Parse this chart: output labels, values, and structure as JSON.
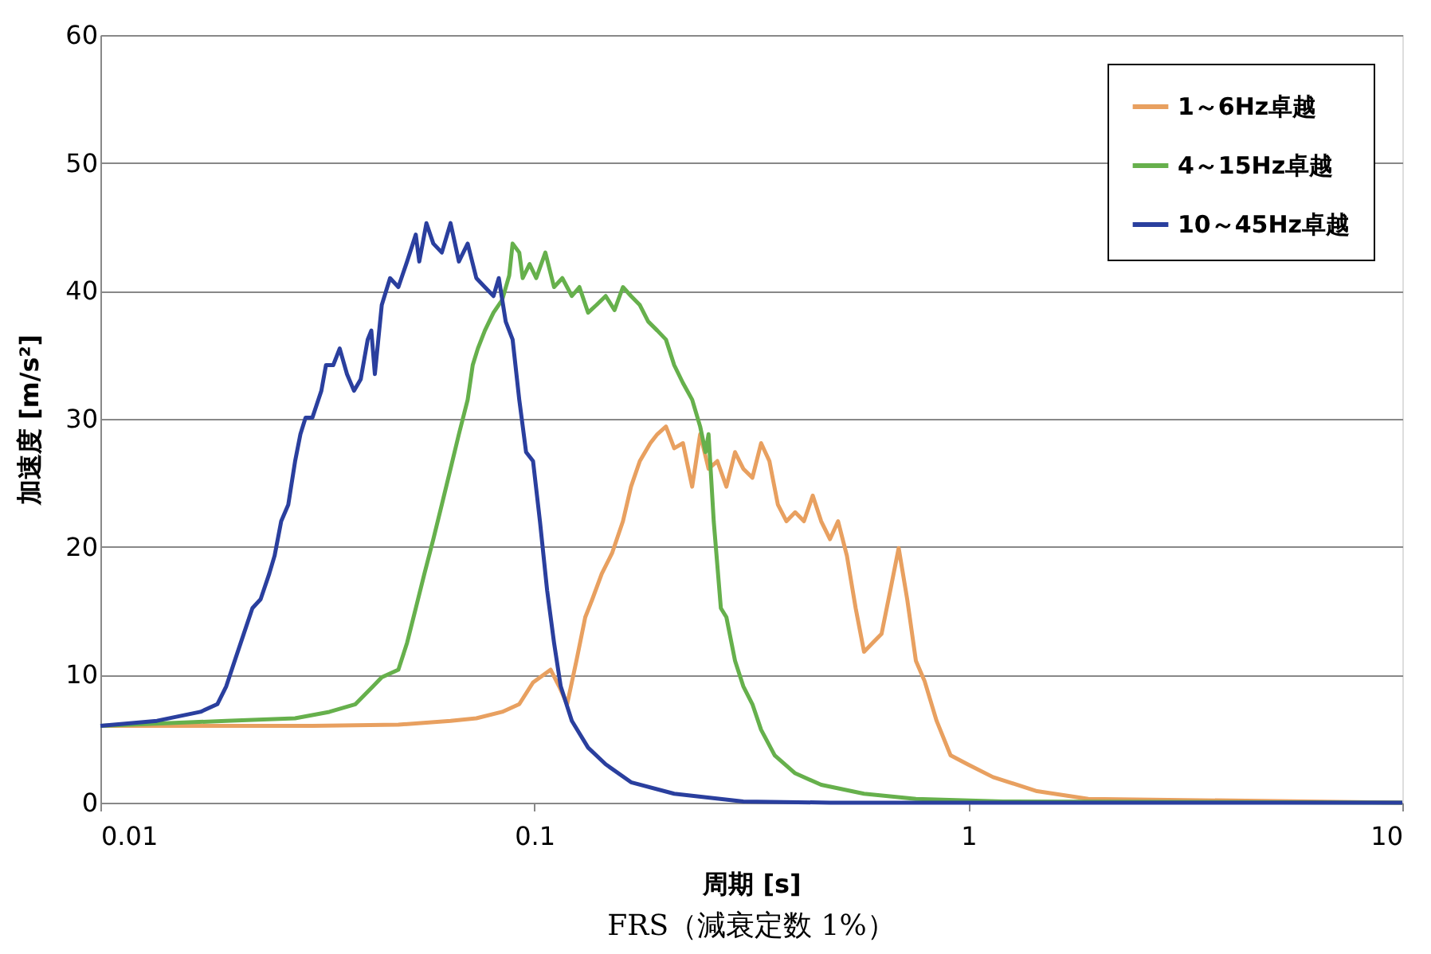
{
  "chart_data": {
    "type": "line",
    "title": "FRS（減衰定数 1%）",
    "xlabel": "周期 [s]",
    "ylabel": "加速度 [m/s²]",
    "log": "x",
    "xlim": [
      0.01,
      10
    ],
    "xticks": [
      0.01,
      0.1,
      1,
      10
    ],
    "ylim": [
      0,
      60
    ],
    "yticks": [
      0,
      10,
      20,
      30,
      40,
      50,
      60
    ],
    "grid": "y",
    "legend": "top right",
    "marker": "none",
    "line_style": "solid",
    "series": [
      {
        "name": "1～6Hz卓越",
        "color": "#e8a060",
        "x": [
          0.01,
          0.0308,
          0.0486,
          0.0641,
          0.0735,
          0.0843,
          0.0923,
          0.0993,
          0.109,
          0.114,
          0.119,
          0.125,
          0.131,
          0.136,
          0.143,
          0.151,
          0.16,
          0.167,
          0.175,
          0.185,
          0.192,
          0.201,
          0.21,
          0.22,
          0.231,
          0.241,
          0.252,
          0.264,
          0.277,
          0.29,
          0.303,
          0.318,
          0.333,
          0.348,
          0.364,
          0.381,
          0.399,
          0.418,
          0.438,
          0.458,
          0.48,
          0.501,
          0.525,
          0.55,
          0.575,
          0.602,
          0.631,
          0.661,
          0.691,
          0.723,
          0.757,
          0.793,
          0.845,
          0.91,
          0.996,
          1.14,
          1.44,
          1.89,
          10
        ],
        "values": [
          6.0,
          6.0,
          6.1,
          6.4,
          6.6,
          7.1,
          7.7,
          9.4,
          10.4,
          9.1,
          7.7,
          11.1,
          14.5,
          15.9,
          17.9,
          19.5,
          22.0,
          24.7,
          26.7,
          28.1,
          28.8,
          29.4,
          27.7,
          28.1,
          24.7,
          28.8,
          26.1,
          26.7,
          24.7,
          27.4,
          26.1,
          25.4,
          28.1,
          26.7,
          23.3,
          22.0,
          22.7,
          22.0,
          24.0,
          22.0,
          20.6,
          22.0,
          19.3,
          15.2,
          11.8,
          12.5,
          13.2,
          16.6,
          19.9,
          15.9,
          11.1,
          9.5,
          6.4,
          3.7,
          3.0,
          2.0,
          0.9,
          0.3,
          0
        ]
      },
      {
        "name": "4～15Hz卓越",
        "color": "#66b04c",
        "x": [
          0.01,
          0.0195,
          0.0281,
          0.0337,
          0.0387,
          0.0425,
          0.0445,
          0.0486,
          0.0509,
          0.0533,
          0.0558,
          0.0585,
          0.0612,
          0.0641,
          0.067,
          0.0702,
          0.0721,
          0.0741,
          0.0769,
          0.0805,
          0.0843,
          0.0875,
          0.0891,
          0.0923,
          0.094,
          0.0975,
          0.101,
          0.106,
          0.111,
          0.116,
          0.122,
          0.127,
          0.133,
          0.139,
          0.146,
          0.153,
          0.16,
          0.167,
          0.175,
          0.183,
          0.192,
          0.201,
          0.21,
          0.22,
          0.231,
          0.241,
          0.248,
          0.252,
          0.259,
          0.269,
          0.277,
          0.29,
          0.303,
          0.318,
          0.333,
          0.358,
          0.399,
          0.458,
          0.575,
          0.757,
          1.2,
          10
        ],
        "values": [
          6.0,
          6.4,
          6.6,
          7.1,
          7.7,
          9.1,
          9.8,
          10.4,
          12.5,
          15.2,
          17.9,
          20.6,
          23.3,
          26.1,
          28.8,
          31.5,
          34.2,
          35.5,
          36.9,
          38.3,
          39.3,
          41.2,
          43.7,
          43.0,
          41.0,
          42.1,
          41.0,
          43.0,
          40.3,
          41.0,
          39.6,
          40.3,
          38.3,
          38.9,
          39.6,
          38.5,
          40.3,
          39.6,
          38.9,
          37.6,
          36.9,
          36.2,
          34.2,
          32.8,
          31.5,
          29.4,
          27.4,
          28.8,
          22.0,
          15.2,
          14.5,
          11.1,
          9.1,
          7.7,
          5.7,
          3.7,
          2.3,
          1.4,
          0.7,
          0.3,
          0.1,
          0
        ]
      },
      {
        "name": "10～45Hz卓越",
        "color": "#2a3f9e",
        "x": [
          0.01,
          0.0135,
          0.017,
          0.0186,
          0.0195,
          0.0204,
          0.0214,
          0.0224,
          0.0234,
          0.0245,
          0.0252,
          0.0261,
          0.0271,
          0.0281,
          0.0289,
          0.0297,
          0.0308,
          0.0323,
          0.0331,
          0.0344,
          0.0356,
          0.037,
          0.0384,
          0.0398,
          0.0413,
          0.0421,
          0.0429,
          0.0445,
          0.0465,
          0.0486,
          0.0509,
          0.0533,
          0.0543,
          0.0564,
          0.0585,
          0.0612,
          0.0641,
          0.067,
          0.0702,
          0.0735,
          0.0769,
          0.0805,
          0.0828,
          0.0859,
          0.0891,
          0.0923,
          0.0957,
          0.0993,
          0.103,
          0.107,
          0.111,
          0.115,
          0.122,
          0.133,
          0.146,
          0.167,
          0.21,
          0.303,
          0.48,
          10
        ],
        "values": [
          6.0,
          6.4,
          7.1,
          7.7,
          9.1,
          11.1,
          13.2,
          15.2,
          15.9,
          17.9,
          19.3,
          22.0,
          23.3,
          26.7,
          28.8,
          30.1,
          30.1,
          32.2,
          34.2,
          34.2,
          35.5,
          33.5,
          32.2,
          33.1,
          36.2,
          36.9,
          33.5,
          38.9,
          41.0,
          40.3,
          42.3,
          44.4,
          42.3,
          45.3,
          43.7,
          43.0,
          45.3,
          42.3,
          43.7,
          41.0,
          40.3,
          39.6,
          41.0,
          37.6,
          36.2,
          31.5,
          27.4,
          26.7,
          22.0,
          16.6,
          12.5,
          9.1,
          6.4,
          4.3,
          3.0,
          1.6,
          0.7,
          0.1,
          0,
          0
        ]
      }
    ]
  }
}
